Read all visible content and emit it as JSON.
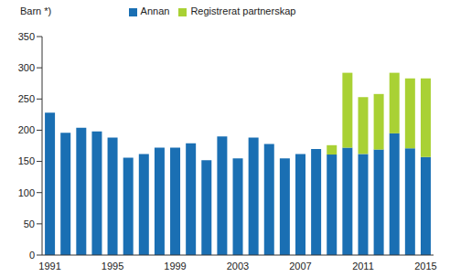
{
  "chart_data": {
    "type": "bar",
    "stacked": true,
    "y_label": "Barn *)",
    "categories": [
      "1991",
      null,
      null,
      null,
      "1995",
      null,
      null,
      null,
      "1999",
      null,
      null,
      null,
      "2003",
      null,
      null,
      null,
      "2007",
      null,
      null,
      null,
      "2011",
      null,
      null,
      null,
      "2015"
    ],
    "series": [
      {
        "name": "Annan",
        "color": "#1a6fb3",
        "values": [
          228,
          196,
          204,
          198,
          188,
          156,
          162,
          172,
          172,
          179,
          152,
          190,
          155,
          188,
          178,
          155,
          162,
          170,
          161,
          172,
          162,
          169,
          195,
          171,
          157
        ]
      },
      {
        "name": "Registrerat partnerskap",
        "color": "#a9d134",
        "values": [
          null,
          null,
          null,
          null,
          null,
          null,
          null,
          null,
          null,
          null,
          null,
          null,
          null,
          null,
          null,
          null,
          null,
          null,
          15,
          120,
          91,
          89,
          97,
          112,
          126
        ]
      }
    ],
    "ylim": [
      0,
      350
    ],
    "yticks": [
      0,
      50,
      100,
      150,
      200,
      250,
      300,
      350
    ],
    "grid": false,
    "legend": "top"
  }
}
